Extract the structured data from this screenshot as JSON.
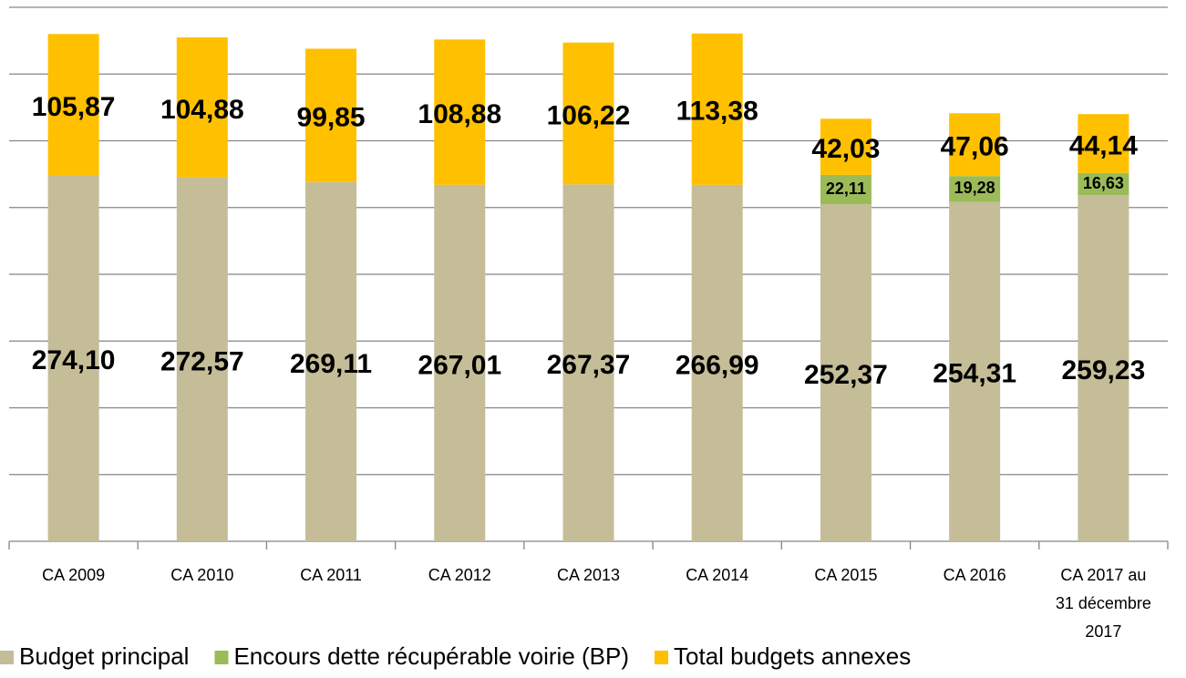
{
  "chart_data": {
    "type": "stacked-bar",
    "categories": [
      "CA 2009",
      "CA 2010",
      "CA 2011",
      "CA 2012",
      "CA 2013",
      "CA 2014",
      "CA 2015",
      "CA 2016",
      "CA 2017 au 31 décembre 2017"
    ],
    "series": [
      {
        "name": "Budget principal",
        "color": "#c4bd97",
        "values": [
          274.1,
          272.57,
          269.11,
          267.01,
          267.37,
          266.99,
          252.37,
          254.31,
          259.23
        ],
        "value_labels": [
          "274,10",
          "272,57",
          "269,11",
          "267,01",
          "267,37",
          "266,99",
          "252,37",
          "254,31",
          "259,23"
        ]
      },
      {
        "name": "Encours dette récupérable voirie (BP)",
        "color": "#9bbb59",
        "values": [
          null,
          null,
          null,
          null,
          null,
          null,
          22.11,
          19.28,
          16.63
        ],
        "value_labels": [
          null,
          null,
          null,
          null,
          null,
          null,
          "22,11",
          "19,28",
          "16,63"
        ]
      },
      {
        "name": "Total budgets annexes",
        "color": "#ffc000",
        "values": [
          105.87,
          104.88,
          99.85,
          108.88,
          106.22,
          113.38,
          42.03,
          47.06,
          44.14
        ],
        "value_labels": [
          "105,87",
          "104,88",
          "99,85",
          "108,88",
          "106,22",
          "113,38",
          "42,03",
          "47,06",
          "44,14"
        ]
      }
    ],
    "ylim": [
      0,
      400
    ],
    "yticks": [
      0,
      50,
      100,
      150,
      200,
      250,
      300,
      350,
      400
    ],
    "grid": true,
    "legend": "bottom"
  }
}
